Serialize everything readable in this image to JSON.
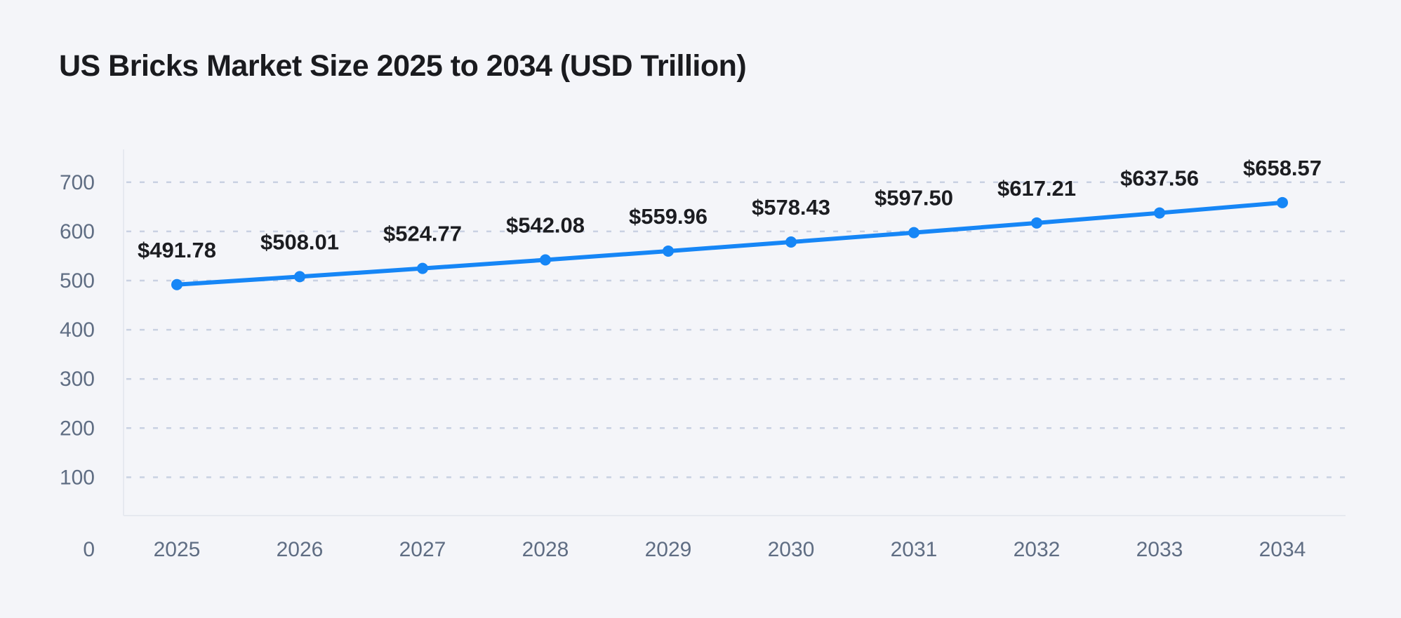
{
  "chart_data": {
    "type": "line",
    "title": "US Bricks Market Size 2025 to 2034 (USD Trillion)",
    "categories": [
      "2025",
      "2026",
      "2027",
      "2028",
      "2029",
      "2030",
      "2031",
      "2032",
      "2033",
      "2034"
    ],
    "series": [
      {
        "name": "US Bricks Market Size (USD Trillion)",
        "values": [
          491.78,
          508.01,
          524.77,
          542.08,
          559.96,
          578.43,
          597.5,
          617.21,
          637.56,
          658.57
        ],
        "point_labels": [
          "$491.78",
          "$508.01",
          "$524.77",
          "$542.08",
          "$559.96",
          "$578.43",
          "$597.50",
          "$617.21",
          "$637.56",
          "$658.57"
        ]
      }
    ],
    "xlabel": "",
    "ylabel": "",
    "y_ticks": [
      0,
      100,
      200,
      300,
      400,
      500,
      600,
      700
    ],
    "y_tick_labels": [
      "0",
      "100",
      "200",
      "300",
      "400",
      "500",
      "600",
      "700"
    ],
    "ylim": [
      0,
      767
    ],
    "grid": "horizontal-dashed",
    "legend_position": "none",
    "colors": {
      "background": "#f4f5f9",
      "line": "#1686f6",
      "marker": "#1686f6",
      "gridline": "#c9d1e2",
      "axis_border": "#e6e9f0",
      "tick_text": "#5f6d83",
      "point_label_text": "#1c1d21",
      "title_text": "#1a1b1f"
    }
  }
}
